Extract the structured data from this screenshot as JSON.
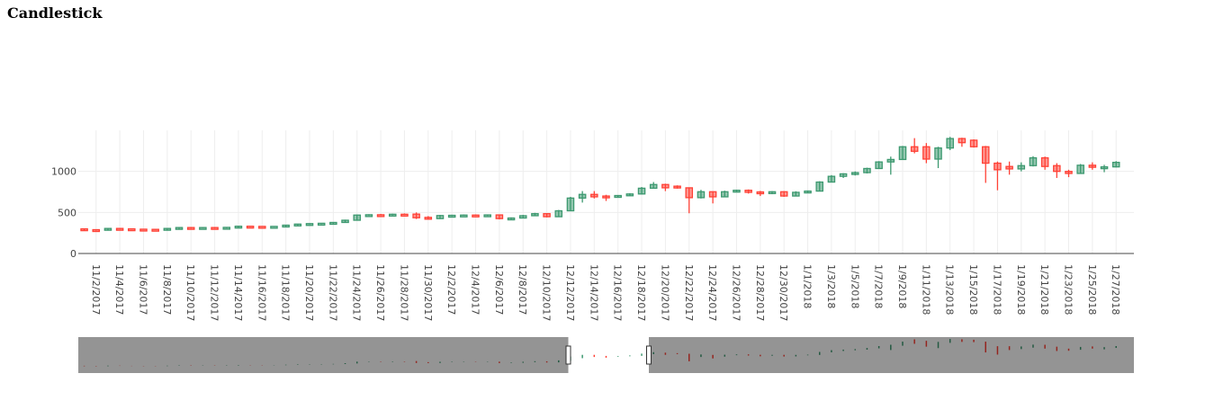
{
  "page": {
    "title": "Candlestick"
  },
  "chart_data": {
    "type": "candlestick",
    "title": "Candlestick",
    "increasing_color": "#3d9970",
    "decreasing_color": "#ff4136",
    "grid": true,
    "rangeslider": true,
    "xlabel": "",
    "ylabel": "",
    "x_range": [
      "2017-11-01",
      "2018-01-29"
    ],
    "ylim": [
      0,
      1500
    ],
    "y_ticks": [
      0,
      500,
      1000
    ],
    "y_tick_labels": [
      "0",
      "500",
      "1000"
    ],
    "x_ticks": [
      "2017-11-02",
      "2017-11-04",
      "2017-11-06",
      "2017-11-08",
      "2017-11-10",
      "2017-11-12",
      "2017-11-14",
      "2017-11-16",
      "2017-11-18",
      "2017-11-20",
      "2017-11-22",
      "2017-11-24",
      "2017-11-26",
      "2017-11-28",
      "2017-11-30",
      "2017-12-02",
      "2017-12-04",
      "2017-12-06",
      "2017-12-08",
      "2017-12-10",
      "2017-12-12",
      "2017-12-14",
      "2017-12-16",
      "2017-12-18",
      "2017-12-20",
      "2017-12-22",
      "2017-12-24",
      "2017-12-26",
      "2017-12-28",
      "2017-12-30",
      "2018-01-01",
      "2018-01-03",
      "2018-01-05",
      "2018-01-07",
      "2018-01-09",
      "2018-01-11",
      "2018-01-13",
      "2018-01-15",
      "2018-01-17",
      "2018-01-19",
      "2018-01-21",
      "2018-01-23",
      "2018-01-25",
      "2018-01-27"
    ],
    "x_tick_labels": [
      "11/2/2017",
      "11/4/2017",
      "11/6/2017",
      "11/8/2017",
      "11/10/2017",
      "11/12/2017",
      "11/14/2017",
      "11/16/2017",
      "11/18/2017",
      "11/20/2017",
      "11/22/2017",
      "11/24/2017",
      "11/26/2017",
      "11/28/2017",
      "11/30/2017",
      "12/2/2017",
      "12/4/2017",
      "12/6/2017",
      "12/8/2017",
      "12/10/2017",
      "12/12/2017",
      "12/14/2017",
      "12/16/2017",
      "12/18/2017",
      "12/20/2017",
      "12/22/2017",
      "12/24/2017",
      "12/26/2017",
      "12/28/2017",
      "12/30/2017",
      "1/1/2018",
      "1/3/2018",
      "1/5/2018",
      "1/7/2018",
      "1/9/2018",
      "1/11/2018",
      "1/13/2018",
      "1/15/2018",
      "1/17/2018",
      "1/19/2018",
      "1/21/2018",
      "1/23/2018",
      "1/25/2018",
      "1/27/2018"
    ],
    "ohlc": [
      {
        "date": "2017-11-01",
        "open": 300,
        "high": 305,
        "low": 285,
        "close": 290
      },
      {
        "date": "2017-11-02",
        "open": 290,
        "high": 295,
        "low": 280,
        "close": 285
      },
      {
        "date": "2017-11-03",
        "open": 290,
        "high": 310,
        "low": 285,
        "close": 305
      },
      {
        "date": "2017-11-04",
        "open": 305,
        "high": 308,
        "low": 298,
        "close": 300
      },
      {
        "date": "2017-11-05",
        "open": 300,
        "high": 302,
        "low": 294,
        "close": 296
      },
      {
        "date": "2017-11-06",
        "open": 296,
        "high": 300,
        "low": 290,
        "close": 294
      },
      {
        "date": "2017-11-07",
        "open": 294,
        "high": 298,
        "low": 288,
        "close": 292
      },
      {
        "date": "2017-11-08",
        "open": 292,
        "high": 308,
        "low": 290,
        "close": 305
      },
      {
        "date": "2017-11-09",
        "open": 305,
        "high": 318,
        "low": 302,
        "close": 316
      },
      {
        "date": "2017-11-10",
        "open": 316,
        "high": 320,
        "low": 306,
        "close": 310
      },
      {
        "date": "2017-11-11",
        "open": 310,
        "high": 320,
        "low": 308,
        "close": 316
      },
      {
        "date": "2017-11-12",
        "open": 316,
        "high": 318,
        "low": 306,
        "close": 310
      },
      {
        "date": "2017-11-13",
        "open": 310,
        "high": 322,
        "low": 308,
        "close": 318
      },
      {
        "date": "2017-11-14",
        "open": 318,
        "high": 335,
        "low": 316,
        "close": 332
      },
      {
        "date": "2017-11-15",
        "open": 332,
        "high": 336,
        "low": 326,
        "close": 330
      },
      {
        "date": "2017-11-16",
        "open": 330,
        "high": 334,
        "low": 324,
        "close": 328
      },
      {
        "date": "2017-11-17",
        "open": 328,
        "high": 332,
        "low": 322,
        "close": 330
      },
      {
        "date": "2017-11-18",
        "open": 330,
        "high": 348,
        "low": 328,
        "close": 345
      },
      {
        "date": "2017-11-19",
        "open": 345,
        "high": 362,
        "low": 342,
        "close": 358
      },
      {
        "date": "2017-11-20",
        "open": 358,
        "high": 368,
        "low": 354,
        "close": 364
      },
      {
        "date": "2017-11-21",
        "open": 364,
        "high": 372,
        "low": 358,
        "close": 368
      },
      {
        "date": "2017-11-22",
        "open": 368,
        "high": 382,
        "low": 364,
        "close": 378
      },
      {
        "date": "2017-11-23",
        "open": 378,
        "high": 412,
        "low": 375,
        "close": 405
      },
      {
        "date": "2017-11-24",
        "open": 405,
        "high": 475,
        "low": 400,
        "close": 468
      },
      {
        "date": "2017-11-25",
        "open": 468,
        "high": 478,
        "low": 462,
        "close": 472
      },
      {
        "date": "2017-11-26",
        "open": 472,
        "high": 482,
        "low": 466,
        "close": 470
      },
      {
        "date": "2017-11-27",
        "open": 470,
        "high": 485,
        "low": 466,
        "close": 478
      },
      {
        "date": "2017-11-28",
        "open": 478,
        "high": 488,
        "low": 470,
        "close": 475
      },
      {
        "date": "2017-11-29",
        "open": 480,
        "high": 500,
        "low": 420,
        "close": 435
      },
      {
        "date": "2017-11-30",
        "open": 440,
        "high": 455,
        "low": 415,
        "close": 425
      },
      {
        "date": "2017-12-01",
        "open": 425,
        "high": 470,
        "low": 420,
        "close": 462
      },
      {
        "date": "2017-12-02",
        "open": 462,
        "high": 472,
        "low": 455,
        "close": 465
      },
      {
        "date": "2017-12-03",
        "open": 465,
        "high": 475,
        "low": 460,
        "close": 468
      },
      {
        "date": "2017-12-04",
        "open": 468,
        "high": 475,
        "low": 462,
        "close": 466
      },
      {
        "date": "2017-12-05",
        "open": 466,
        "high": 472,
        "low": 458,
        "close": 470
      },
      {
        "date": "2017-12-06",
        "open": 470,
        "high": 475,
        "low": 415,
        "close": 425
      },
      {
        "date": "2017-12-07",
        "open": 425,
        "high": 440,
        "low": 418,
        "close": 432
      },
      {
        "date": "2017-12-08",
        "open": 432,
        "high": 470,
        "low": 428,
        "close": 460
      },
      {
        "date": "2017-12-09",
        "open": 460,
        "high": 495,
        "low": 455,
        "close": 485
      },
      {
        "date": "2017-12-10",
        "open": 485,
        "high": 490,
        "low": 440,
        "close": 448
      },
      {
        "date": "2017-12-11",
        "open": 448,
        "high": 530,
        "low": 445,
        "close": 520
      },
      {
        "date": "2017-12-12",
        "open": 520,
        "high": 690,
        "low": 515,
        "close": 675
      },
      {
        "date": "2017-12-13",
        "open": 675,
        "high": 760,
        "low": 620,
        "close": 720
      },
      {
        "date": "2017-12-14",
        "open": 720,
        "high": 760,
        "low": 670,
        "close": 690
      },
      {
        "date": "2017-12-15",
        "open": 700,
        "high": 715,
        "low": 640,
        "close": 680
      },
      {
        "date": "2017-12-16",
        "open": 690,
        "high": 712,
        "low": 684,
        "close": 706
      },
      {
        "date": "2017-12-17",
        "open": 706,
        "high": 735,
        "low": 700,
        "close": 725
      },
      {
        "date": "2017-12-18",
        "open": 725,
        "high": 810,
        "low": 718,
        "close": 795
      },
      {
        "date": "2017-12-19",
        "open": 795,
        "high": 870,
        "low": 790,
        "close": 840
      },
      {
        "date": "2017-12-20",
        "open": 840,
        "high": 850,
        "low": 760,
        "close": 800
      },
      {
        "date": "2017-12-21",
        "open": 820,
        "high": 830,
        "low": 790,
        "close": 800
      },
      {
        "date": "2017-12-22",
        "open": 800,
        "high": 805,
        "low": 490,
        "close": 680
      },
      {
        "date": "2017-12-23",
        "open": 680,
        "high": 775,
        "low": 670,
        "close": 752
      },
      {
        "date": "2017-12-24",
        "open": 752,
        "high": 758,
        "low": 610,
        "close": 690
      },
      {
        "date": "2017-12-25",
        "open": 690,
        "high": 765,
        "low": 685,
        "close": 752
      },
      {
        "date": "2017-12-26",
        "open": 752,
        "high": 778,
        "low": 745,
        "close": 770
      },
      {
        "date": "2017-12-27",
        "open": 770,
        "high": 780,
        "low": 730,
        "close": 745
      },
      {
        "date": "2017-12-28",
        "open": 750,
        "high": 762,
        "low": 700,
        "close": 730
      },
      {
        "date": "2017-12-29",
        "open": 730,
        "high": 760,
        "low": 722,
        "close": 752
      },
      {
        "date": "2017-12-30",
        "open": 752,
        "high": 760,
        "low": 690,
        "close": 700
      },
      {
        "date": "2017-12-31",
        "open": 700,
        "high": 758,
        "low": 695,
        "close": 745
      },
      {
        "date": "2018-01-01",
        "open": 745,
        "high": 768,
        "low": 740,
        "close": 760
      },
      {
        "date": "2018-01-02",
        "open": 760,
        "high": 880,
        "low": 755,
        "close": 870
      },
      {
        "date": "2018-01-03",
        "open": 870,
        "high": 955,
        "low": 865,
        "close": 940
      },
      {
        "date": "2018-01-04",
        "open": 940,
        "high": 978,
        "low": 920,
        "close": 970
      },
      {
        "date": "2018-01-05",
        "open": 970,
        "high": 1000,
        "low": 950,
        "close": 985
      },
      {
        "date": "2018-01-06",
        "open": 985,
        "high": 1045,
        "low": 975,
        "close": 1035
      },
      {
        "date": "2018-01-07",
        "open": 1035,
        "high": 1125,
        "low": 1030,
        "close": 1115
      },
      {
        "date": "2018-01-08",
        "open": 1115,
        "high": 1180,
        "low": 960,
        "close": 1145
      },
      {
        "date": "2018-01-09",
        "open": 1145,
        "high": 1310,
        "low": 1140,
        "close": 1300
      },
      {
        "date": "2018-01-10",
        "open": 1300,
        "high": 1405,
        "low": 1220,
        "close": 1245
      },
      {
        "date": "2018-01-11",
        "open": 1300,
        "high": 1345,
        "low": 1100,
        "close": 1150
      },
      {
        "date": "2018-01-12",
        "open": 1150,
        "high": 1300,
        "low": 1040,
        "close": 1285
      },
      {
        "date": "2018-01-13",
        "open": 1285,
        "high": 1420,
        "low": 1260,
        "close": 1400
      },
      {
        "date": "2018-01-14",
        "open": 1400,
        "high": 1410,
        "low": 1300,
        "close": 1350
      },
      {
        "date": "2018-01-15",
        "open": 1380,
        "high": 1390,
        "low": 1290,
        "close": 1300
      },
      {
        "date": "2018-01-16",
        "open": 1300,
        "high": 1310,
        "low": 860,
        "close": 1100
      },
      {
        "date": "2018-01-17",
        "open": 1100,
        "high": 1120,
        "low": 770,
        "close": 1020
      },
      {
        "date": "2018-01-18",
        "open": 1060,
        "high": 1120,
        "low": 960,
        "close": 1030
      },
      {
        "date": "2018-01-19",
        "open": 1030,
        "high": 1110,
        "low": 1000,
        "close": 1070
      },
      {
        "date": "2018-01-20",
        "open": 1070,
        "high": 1185,
        "low": 1060,
        "close": 1165
      },
      {
        "date": "2018-01-21",
        "open": 1165,
        "high": 1180,
        "low": 1020,
        "close": 1060
      },
      {
        "date": "2018-01-22",
        "open": 1070,
        "high": 1100,
        "low": 920,
        "close": 1000
      },
      {
        "date": "2018-01-23",
        "open": 1000,
        "high": 1020,
        "low": 930,
        "close": 975
      },
      {
        "date": "2018-01-24",
        "open": 975,
        "high": 1090,
        "low": 970,
        "close": 1075
      },
      {
        "date": "2018-01-25",
        "open": 1075,
        "high": 1110,
        "low": 1020,
        "close": 1050
      },
      {
        "date": "2018-01-26",
        "open": 1050,
        "high": 1080,
        "low": 990,
        "close": 1055
      },
      {
        "date": "2018-01-27",
        "open": 1055,
        "high": 1125,
        "low": 1048,
        "close": 1110
      }
    ]
  }
}
